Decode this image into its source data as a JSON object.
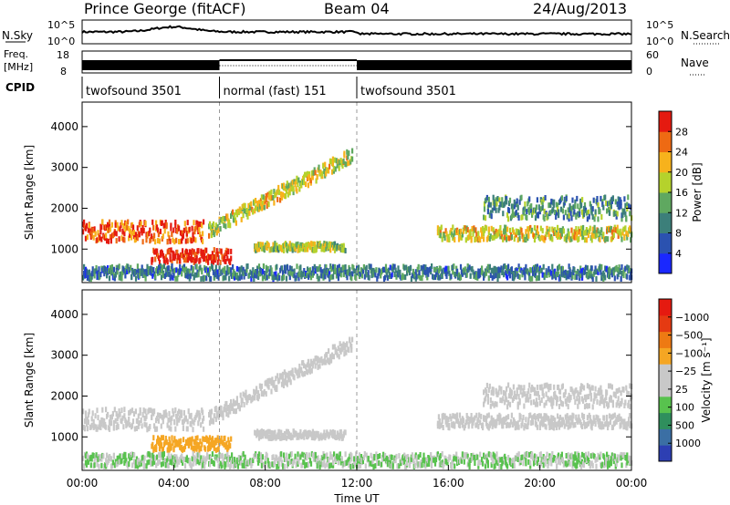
{
  "header": {
    "station": "Prince George (fitACF)",
    "beam": "Beam 04",
    "date": "24/Aug/2013"
  },
  "chart_data": {
    "type": "heatmap",
    "time_axis": {
      "label": "Time UT",
      "ticks": [
        "00:00",
        "04:00",
        "08:00",
        "12:00",
        "16:00",
        "20:00",
        "00:00"
      ],
      "range_hours": [
        0,
        24
      ]
    },
    "nsky": {
      "label": "N.Sky",
      "right_label": "N.Search",
      "ticks_left": [
        "10^5",
        "10^0"
      ],
      "ticks_right": [
        "10^5",
        "10^0"
      ]
    },
    "freq": {
      "label_line1": "Freq.",
      "label_line2": "[MHz]",
      "ticks_left": [
        18,
        8
      ],
      "right_label": "Nave",
      "ticks_right": [
        60,
        0
      ]
    },
    "cpid": {
      "label": "CPID",
      "segments": [
        {
          "name": "twofsound 3501",
          "start_h": 0,
          "end_h": 6
        },
        {
          "name": "normal (fast) 151",
          "start_h": 6,
          "end_h": 12
        },
        {
          "name": "twofsound 3501",
          "start_h": 12,
          "end_h": 24
        }
      ]
    },
    "power_panel": {
      "ylabel": "Slant Range [km]",
      "yticks": [
        1000,
        2000,
        3000,
        4000
      ],
      "ylim": [
        180,
        4600
      ],
      "colorbar": {
        "label": "Power [dB]",
        "ticks": [
          4,
          8,
          12,
          16,
          20,
          24,
          28
        ],
        "colors": [
          "#1a28ff",
          "#2b52b0",
          "#3c7f7a",
          "#5fa860",
          "#b5d22c",
          "#f7b21c",
          "#ee6a13",
          "#e51a10"
        ]
      }
    },
    "velocity_panel": {
      "ylabel": "Slant Range [km]",
      "yticks": [
        1000,
        2000,
        3000,
        4000
      ],
      "ylim": [
        180,
        4600
      ],
      "colorbar": {
        "label": "Velocity [m s⁻¹]",
        "ticks": [
          "1000",
          "500",
          "100",
          "25",
          "−25",
          "−100",
          "−500",
          "−1000"
        ],
        "colors": [
          "#2d3fb3",
          "#3b6fa4",
          "#2f8f5d",
          "#58c24e",
          "#c8c8c8",
          "#c8c8c8",
          "#f5a623",
          "#ee7a13",
          "#e53a12",
          "#e51a10"
        ]
      }
    },
    "features": [
      {
        "name": "low-range band A",
        "t0": 0.0,
        "t1": 5.3,
        "r0": 1150,
        "r1": 1700,
        "level": 0.85
      },
      {
        "name": "low-range band B",
        "t0": 3.0,
        "t1": 6.5,
        "r0": 650,
        "r1": 1000,
        "level": 0.95
      },
      {
        "name": "rising arc",
        "t0": 5.5,
        "t1": 11.8,
        "r0": 1450,
        "r1": 3300,
        "level": 0.6
      },
      {
        "name": "mid band",
        "t0": 7.5,
        "t1": 11.5,
        "r0": 950,
        "r1": 1150,
        "level": 0.55
      },
      {
        "name": "afternoon band",
        "t0": 15.5,
        "t1": 24.0,
        "r0": 1200,
        "r1": 1550,
        "level": 0.6
      },
      {
        "name": "evening upper arc",
        "t0": 17.5,
        "t1": 24.0,
        "r0": 1700,
        "r1": 2300,
        "level": 0.35
      },
      {
        "name": "near-range clutter",
        "t0": 0.0,
        "t1": 24.0,
        "r0": 250,
        "r1": 600,
        "level": 0.3
      }
    ]
  }
}
